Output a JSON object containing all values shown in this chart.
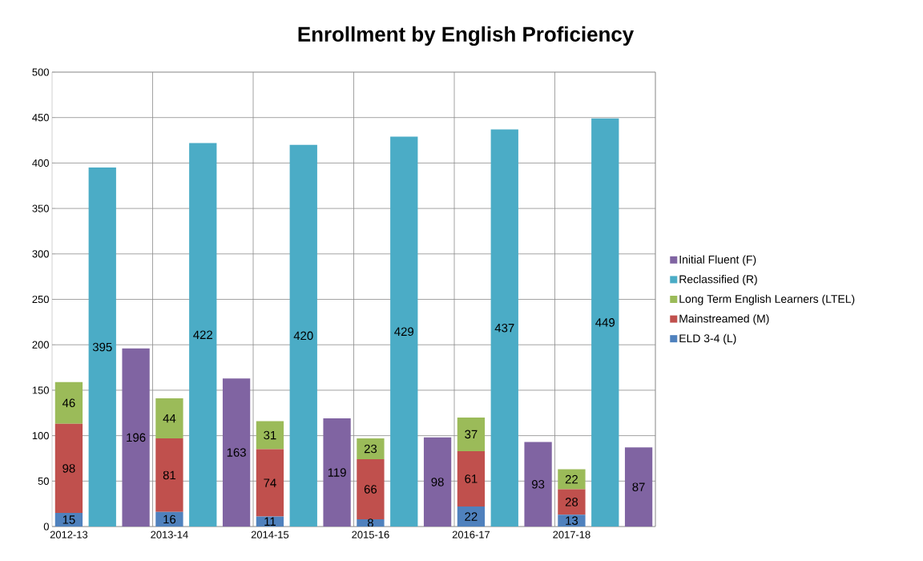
{
  "chart_data": {
    "type": "bar",
    "title": "Enrollment by English Proficiency",
    "categories": [
      "2012-13",
      null,
      null,
      "2013-14",
      null,
      null,
      "2014-15",
      null,
      null,
      "2015-16",
      null,
      null,
      "2016-17",
      null,
      null,
      "2017-18",
      null,
      null
    ],
    "series": [
      {
        "name": "ELD 3-4 (L)",
        "color": "#4f81bd",
        "values": [
          15,
          null,
          null,
          16,
          null,
          null,
          11,
          null,
          null,
          8,
          null,
          null,
          22,
          null,
          null,
          13,
          null,
          null
        ]
      },
      {
        "name": "Mainstreamed (M)",
        "color": "#c0504d",
        "values": [
          98,
          null,
          null,
          81,
          null,
          null,
          74,
          null,
          null,
          66,
          null,
          null,
          61,
          null,
          null,
          28,
          null,
          null
        ]
      },
      {
        "name": "Long Term English Learners (LTEL)",
        "color": "#9bbb59",
        "values": [
          46,
          null,
          null,
          44,
          null,
          null,
          31,
          null,
          null,
          23,
          null,
          null,
          37,
          null,
          null,
          22,
          null,
          null
        ]
      },
      {
        "name": "Reclassified (R)",
        "color": "#4bacc6",
        "values": [
          null,
          395,
          null,
          null,
          422,
          null,
          null,
          420,
          null,
          null,
          429,
          null,
          null,
          437,
          null,
          null,
          449,
          null
        ]
      },
      {
        "name": "Initial Fluent (F)",
        "color": "#8064a2",
        "values": [
          null,
          null,
          196,
          null,
          null,
          163,
          null,
          null,
          119,
          null,
          null,
          98,
          null,
          null,
          93,
          null,
          null,
          87
        ]
      }
    ],
    "stacked": true,
    "ylim": [
      0,
      500
    ],
    "yticks": [
      0,
      50,
      100,
      150,
      200,
      250,
      300,
      350,
      400,
      450,
      500
    ],
    "grid": true,
    "legend": "right",
    "data_labels": true
  }
}
